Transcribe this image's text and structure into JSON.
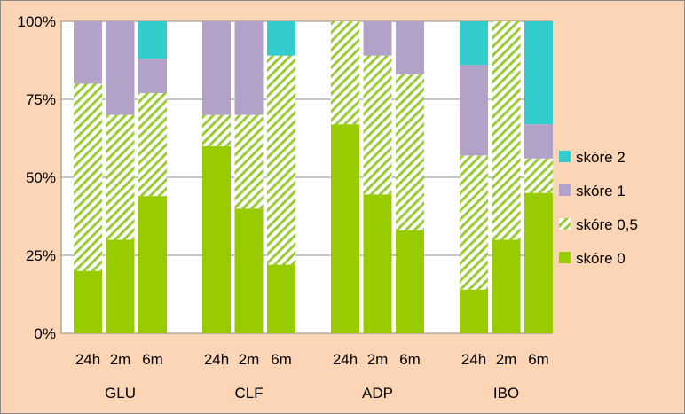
{
  "chart_data": {
    "type": "bar",
    "stacked": true,
    "normalized": true,
    "groups": [
      "GLU",
      "CLF",
      "ADP",
      "IBO"
    ],
    "categories": [
      "24h",
      "2m",
      "6m"
    ],
    "y_tick_labels": [
      "0%",
      "25%",
      "50%",
      "75%",
      "100%"
    ],
    "ylim": [
      0,
      100
    ],
    "grid": true,
    "legend_position": "right",
    "series": [
      {
        "name": "skóre 0",
        "color": "#99cc00",
        "pattern": "solid",
        "values": [
          [
            20,
            30,
            44
          ],
          [
            60,
            40,
            22
          ],
          [
            67,
            44.5,
            33
          ],
          [
            14,
            30,
            45
          ]
        ]
      },
      {
        "name": "skóre 0,5",
        "color": "#99cc33",
        "pattern": "hatched",
        "values": [
          [
            60,
            40,
            33
          ],
          [
            10,
            30,
            67
          ],
          [
            33,
            44.5,
            50
          ],
          [
            43,
            70,
            11
          ]
        ]
      },
      {
        "name": "skóre 1",
        "color": "#b3a2c7",
        "pattern": "solid",
        "values": [
          [
            20,
            30,
            11
          ],
          [
            30,
            30,
            0
          ],
          [
            0,
            11,
            17
          ],
          [
            29,
            0,
            11
          ]
        ]
      },
      {
        "name": "skóre 2",
        "color": "#33cccc",
        "pattern": "solid",
        "values": [
          [
            0,
            0,
            12
          ],
          [
            0,
            0,
            11
          ],
          [
            0,
            0,
            0
          ],
          [
            14,
            0,
            33
          ]
        ]
      }
    ]
  }
}
